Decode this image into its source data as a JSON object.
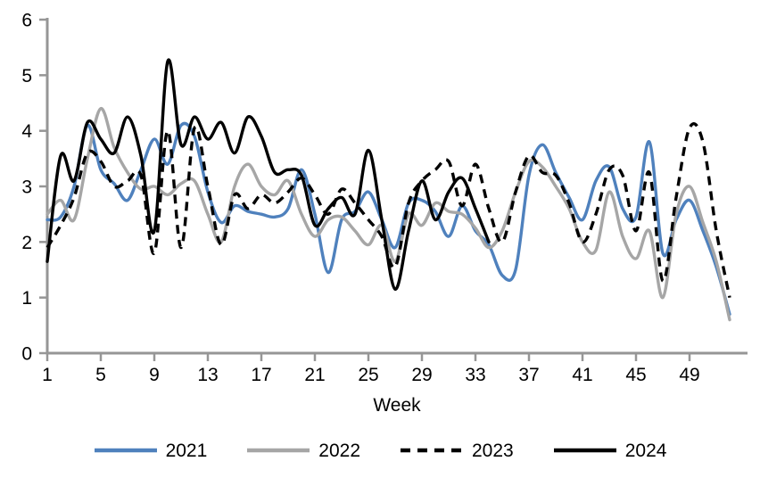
{
  "chart_data": {
    "type": "line",
    "title": "",
    "xlabel": "Week",
    "ylabel": "",
    "ylim": [
      0,
      6
    ],
    "y_ticks": [
      0,
      1,
      2,
      3,
      4,
      5,
      6
    ],
    "x_ticks": [
      1,
      5,
      9,
      13,
      17,
      21,
      25,
      29,
      33,
      37,
      41,
      45,
      49
    ],
    "x_start": 1,
    "x_step": 1,
    "x_max": 52,
    "grid": false,
    "legend_position": "bottom",
    "axis_color": "#969696",
    "smoothing": true,
    "series": [
      {
        "name": "2021",
        "color": "#4F81BD",
        "style": "solid",
        "values": [
          2.4,
          2.45,
          3.0,
          4.1,
          3.3,
          3.05,
          2.75,
          3.3,
          3.85,
          3.4,
          4.1,
          3.9,
          2.9,
          2.35,
          2.65,
          2.55,
          2.5,
          2.45,
          2.6,
          3.3,
          2.5,
          1.45,
          2.4,
          2.55,
          2.9,
          2.4,
          1.9,
          2.7,
          2.75,
          2.55,
          2.1,
          2.65,
          2.2,
          1.95,
          1.4,
          1.5,
          3.2,
          3.75,
          3.25,
          2.8,
          2.4,
          3.1,
          3.35,
          2.6,
          2.45,
          3.8,
          1.8,
          2.4,
          2.75,
          2.2,
          1.55,
          0.7
        ]
      },
      {
        "name": "2022",
        "color": "#A6A6A6",
        "style": "solid",
        "values": [
          2.5,
          2.75,
          2.4,
          3.5,
          4.4,
          3.7,
          3.25,
          2.95,
          3.0,
          2.85,
          3.05,
          3.1,
          2.5,
          2.0,
          3.0,
          3.4,
          3.0,
          2.85,
          3.1,
          2.5,
          2.1,
          2.4,
          2.45,
          2.2,
          1.95,
          2.3,
          1.65,
          2.5,
          2.3,
          2.7,
          2.55,
          2.5,
          2.25,
          1.9,
          2.2,
          2.9,
          3.45,
          3.35,
          3.0,
          2.6,
          2.0,
          1.85,
          2.9,
          2.1,
          1.7,
          2.2,
          1.0,
          2.5,
          3.0,
          2.35,
          1.65,
          0.6
        ]
      },
      {
        "name": "2023",
        "color": "#000000",
        "style": "dashed",
        "values": [
          1.9,
          2.3,
          2.8,
          3.6,
          3.45,
          3.0,
          3.1,
          3.2,
          1.8,
          4.0,
          1.9,
          4.05,
          3.0,
          1.95,
          2.85,
          2.6,
          2.85,
          2.7,
          2.9,
          3.15,
          2.85,
          2.5,
          2.95,
          2.7,
          2.4,
          2.1,
          1.55,
          2.7,
          3.1,
          3.3,
          3.45,
          2.65,
          3.4,
          2.6,
          2.0,
          2.9,
          3.55,
          3.25,
          3.2,
          2.7,
          2.0,
          2.5,
          3.3,
          3.2,
          2.2,
          3.25,
          1.3,
          2.8,
          4.05,
          3.8,
          2.2,
          1.0
        ]
      },
      {
        "name": "2024",
        "color": "#000000",
        "style": "solid",
        "values": [
          1.65,
          3.55,
          3.1,
          4.15,
          3.85,
          3.6,
          4.25,
          3.55,
          2.2,
          5.25,
          3.75,
          4.25,
          3.85,
          4.15,
          3.6,
          4.25,
          3.9,
          3.25,
          3.3,
          3.2,
          2.3,
          2.6,
          2.8,
          2.5,
          3.65,
          2.4,
          1.15,
          2.2,
          3.1,
          2.4,
          2.9,
          3.15,
          2.6,
          2.0
        ]
      }
    ]
  }
}
